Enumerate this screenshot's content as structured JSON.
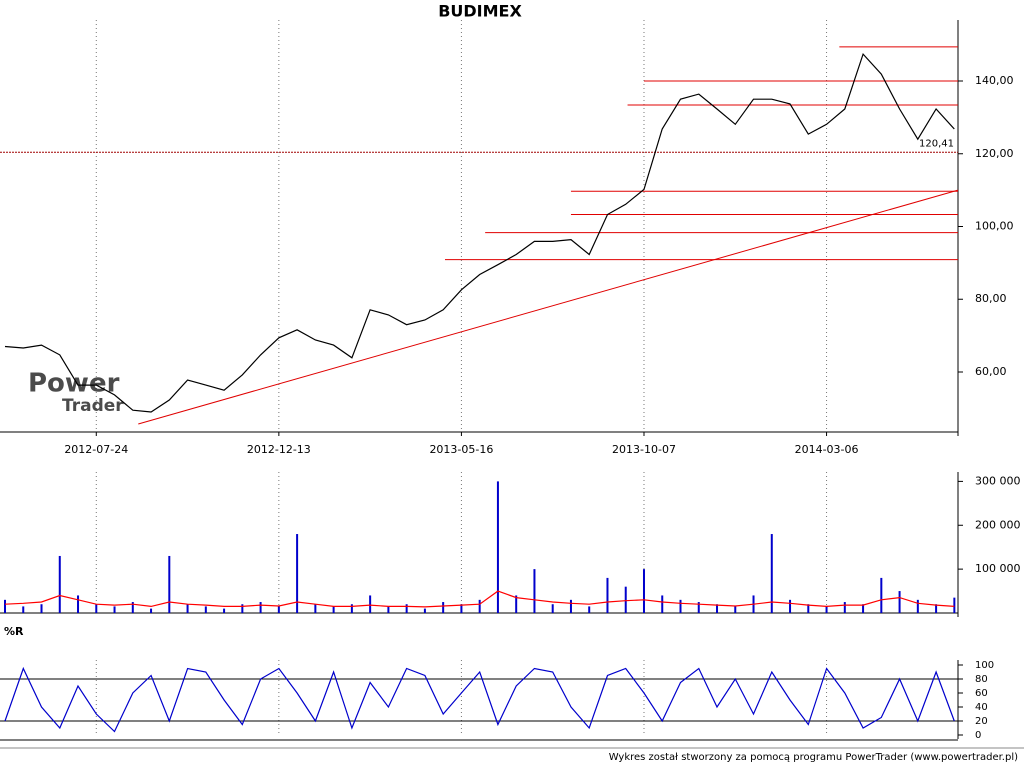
{
  "chart_data": [
    {
      "type": "line",
      "title": "BUDIMEX",
      "x": [
        0,
        10,
        20,
        30,
        40,
        50,
        60,
        70,
        80,
        90,
        100,
        110,
        120,
        130,
        140,
        150,
        160,
        170,
        180,
        190,
        200,
        210,
        220,
        230,
        240,
        250,
        260,
        270,
        280,
        290,
        300,
        310,
        320,
        330,
        340,
        350,
        360,
        370,
        380,
        390,
        400,
        410,
        420,
        430,
        440,
        450,
        460,
        470,
        480,
        490,
        500,
        510,
        520
      ],
      "series": [
        {
          "name": "BUDIMEX",
          "color": "#000000",
          "values": [
            67,
            66.6,
            67.4,
            64.7,
            56.4,
            56.4,
            53.7,
            49.5,
            49,
            52.3,
            57.8,
            56.4,
            55,
            59.2,
            64.7,
            69.4,
            71.6,
            68.8,
            67.4,
            63.9,
            77.1,
            75.7,
            73,
            74.3,
            77.1,
            82.6,
            86.8,
            89.5,
            92.3,
            95.9,
            95.9,
            96.4,
            92.3,
            103.3,
            106.1,
            110.2,
            126.8,
            135,
            136.4,
            132.3,
            128.1,
            135,
            135,
            133.7,
            125.4,
            128.1,
            132.3,
            147.4,
            141.9,
            132.3,
            124,
            132.3,
            126.8
          ]
        }
      ],
      "xlim": [
        0,
        522
      ],
      "ylim": [
        43.5,
        155.4
      ],
      "xticks": [
        {
          "value": 50,
          "label": "2012-07-24"
        },
        {
          "value": 150,
          "label": "2012-12-13"
        },
        {
          "value": 250,
          "label": "2013-05-16"
        },
        {
          "value": 350,
          "label": "2013-10-07"
        },
        {
          "value": 450,
          "label": "2014-03-06"
        }
      ],
      "yticks": [
        {
          "value": 60,
          "label": "60,00"
        },
        {
          "value": 80,
          "label": "80,00"
        },
        {
          "value": 100,
          "label": "100,00"
        },
        {
          "value": 120,
          "label": "120,00"
        },
        {
          "value": 140,
          "label": "140,00"
        }
      ],
      "levels": [
        {
          "x": 457,
          "value": 149.4
        },
        {
          "x": 350,
          "value": 140
        },
        {
          "x": 341,
          "value": 133.4
        },
        {
          "x": 310,
          "value": 109.7
        },
        {
          "x": 310,
          "value": 103.3
        },
        {
          "x": 263,
          "value": 98.3
        },
        {
          "x": 241,
          "value": 90.9
        }
      ],
      "level_color": "#e00000",
      "trend": {
        "x": [
          73,
          522
        ],
        "values": [
          45.7,
          110
        ]
      },
      "marker_level": {
        "value": 120.41,
        "label": "120,41"
      },
      "watermark": [
        "Power",
        "Trader"
      ]
    },
    {
      "type": "bar",
      "x": [
        0,
        10,
        20,
        30,
        40,
        50,
        60,
        70,
        80,
        90,
        100,
        110,
        120,
        130,
        140,
        150,
        160,
        170,
        180,
        190,
        200,
        210,
        220,
        230,
        240,
        250,
        260,
        270,
        280,
        290,
        300,
        310,
        320,
        330,
        340,
        350,
        360,
        370,
        380,
        390,
        400,
        410,
        420,
        430,
        440,
        450,
        460,
        470,
        480,
        490,
        500,
        510,
        520
      ],
      "series": [
        {
          "name": "volume",
          "color": "#0000cc",
          "values": [
            30000,
            15000,
            20000,
            130000,
            40000,
            20000,
            15000,
            25000,
            10000,
            130000,
            20000,
            15000,
            10000,
            20000,
            25000,
            15000,
            180000,
            20000,
            15000,
            20000,
            40000,
            15000,
            20000,
            10000,
            25000,
            20000,
            30000,
            300000,
            40000,
            100000,
            20000,
            30000,
            15000,
            80000,
            60000,
            100000,
            40000,
            30000,
            25000,
            20000,
            15000,
            40000,
            180000,
            30000,
            20000,
            15000,
            25000,
            20000,
            80000,
            50000,
            30000,
            20000,
            35000
          ]
        },
        {
          "name": "average",
          "color": "#ff0000",
          "values": [
            20000,
            22000,
            25000,
            40000,
            30000,
            20000,
            18000,
            20000,
            15000,
            25000,
            20000,
            18000,
            15000,
            15000,
            18000,
            16000,
            25000,
            20000,
            15000,
            15000,
            18000,
            15000,
            15000,
            14000,
            16000,
            18000,
            20000,
            50000,
            35000,
            30000,
            25000,
            22000,
            20000,
            25000,
            28000,
            30000,
            25000,
            22000,
            20000,
            18000,
            16000,
            20000,
            25000,
            22000,
            18000,
            15000,
            18000,
            18000,
            30000,
            35000,
            22000,
            18000,
            15000
          ]
        }
      ],
      "xlim": [
        0,
        522
      ],
      "ylim": [
        0,
        310000
      ],
      "yticks": [
        {
          "value": 100000,
          "label": "100 000"
        },
        {
          "value": 200000,
          "label": "200 000"
        },
        {
          "value": 300000,
          "label": "300 000"
        }
      ]
    },
    {
      "type": "line",
      "title": "%R",
      "x": [
        0,
        10,
        20,
        30,
        40,
        50,
        60,
        70,
        80,
        90,
        100,
        110,
        120,
        130,
        140,
        150,
        160,
        170,
        180,
        190,
        200,
        210,
        220,
        230,
        240,
        250,
        260,
        270,
        280,
        290,
        300,
        310,
        320,
        330,
        340,
        350,
        360,
        370,
        380,
        390,
        400,
        410,
        420,
        430,
        440,
        450,
        460,
        470,
        480,
        490,
        500,
        510,
        520
      ],
      "series": [
        {
          "name": "%R",
          "color": "#0000cc",
          "values": [
            20,
            95,
            40,
            10,
            70,
            30,
            5,
            60,
            85,
            20,
            95,
            90,
            50,
            15,
            80,
            95,
            60,
            20,
            90,
            10,
            75,
            40,
            95,
            85,
            30,
            60,
            90,
            15,
            70,
            95,
            90,
            40,
            10,
            85,
            95,
            60,
            20,
            75,
            95,
            40,
            80,
            30,
            90,
            50,
            15,
            95,
            60,
            10,
            25,
            80,
            20,
            90,
            20
          ]
        }
      ],
      "xlim": [
        0,
        522
      ],
      "ylim": [
        0,
        100
      ],
      "yticks": [
        0,
        20,
        40,
        60,
        80,
        100
      ],
      "hlines": [
        20,
        80
      ]
    }
  ],
  "footer": "Wykres został stworzony za pomocą programu PowerTrader (www.powertrader.pl)"
}
